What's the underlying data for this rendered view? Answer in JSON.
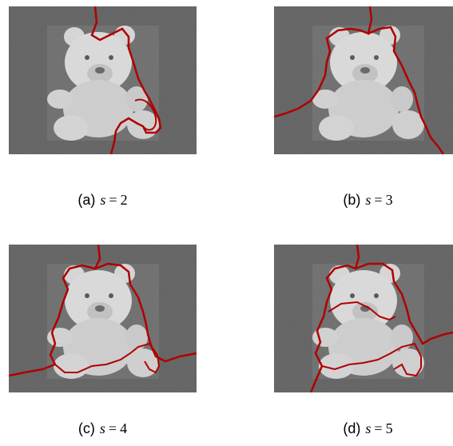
{
  "panels": [
    {
      "label": "(a)",
      "variable": "s",
      "equals": "=",
      "value": "2"
    },
    {
      "label": "(b)",
      "variable": "s",
      "equals": "=",
      "value": "3"
    },
    {
      "label": "(c)",
      "variable": "s",
      "equals": "=",
      "value": "4"
    },
    {
      "label": "(d)",
      "variable": "s",
      "equals": "=",
      "value": "5"
    }
  ],
  "colors": {
    "background": "#6a6a6a",
    "bear": "#d8d8d8",
    "contour": "#b00000"
  }
}
